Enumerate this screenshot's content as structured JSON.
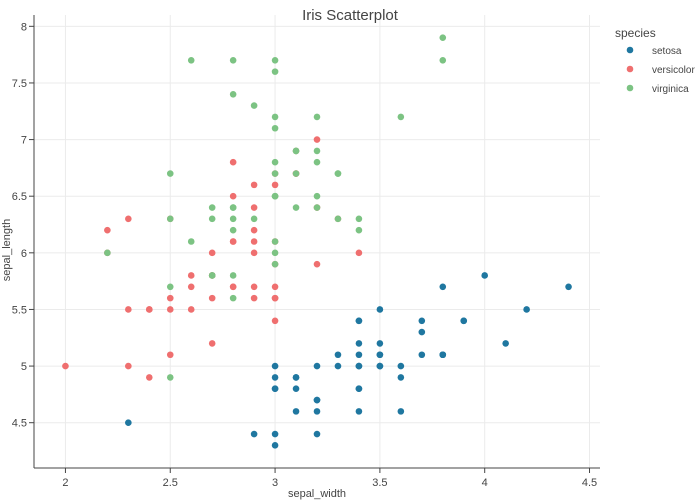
{
  "chart_data": {
    "type": "scatter",
    "title": "Iris Scatterplot",
    "xlabel": "sepal_width",
    "ylabel": "sepal_length",
    "xlim": [
      1.85,
      4.55
    ],
    "ylim": [
      4.1,
      8.1
    ],
    "xticks": [
      "2",
      "2.5",
      "3",
      "3.5",
      "4",
      "4.5"
    ],
    "yticks": [
      "4.5",
      "5",
      "5.5",
      "6",
      "6.5",
      "7",
      "7.5",
      "8"
    ],
    "grid": true,
    "legend": {
      "title": "species",
      "position": "right"
    },
    "series": [
      {
        "name": "setosa",
        "color": "#1f77a0",
        "points": [
          [
            3.5,
            5.1
          ],
          [
            3.0,
            4.9
          ],
          [
            3.2,
            4.7
          ],
          [
            3.1,
            4.6
          ],
          [
            3.6,
            5.0
          ],
          [
            3.9,
            5.4
          ],
          [
            3.4,
            4.6
          ],
          [
            3.4,
            5.0
          ],
          [
            2.9,
            4.4
          ],
          [
            3.1,
            4.9
          ],
          [
            3.7,
            5.4
          ],
          [
            3.4,
            4.8
          ],
          [
            3.0,
            4.8
          ],
          [
            3.0,
            4.3
          ],
          [
            4.0,
            5.8
          ],
          [
            4.4,
            5.7
          ],
          [
            3.9,
            5.4
          ],
          [
            3.5,
            5.1
          ],
          [
            3.8,
            5.7
          ],
          [
            3.8,
            5.1
          ],
          [
            3.4,
            5.4
          ],
          [
            3.7,
            5.1
          ],
          [
            3.6,
            4.6
          ],
          [
            3.3,
            5.1
          ],
          [
            3.4,
            4.8
          ],
          [
            3.0,
            5.0
          ],
          [
            3.4,
            5.0
          ],
          [
            3.5,
            5.2
          ],
          [
            3.4,
            5.2
          ],
          [
            3.2,
            4.7
          ],
          [
            3.1,
            4.8
          ],
          [
            3.4,
            5.4
          ],
          [
            4.1,
            5.2
          ],
          [
            4.2,
            5.5
          ],
          [
            3.1,
            4.9
          ],
          [
            3.2,
            5.0
          ],
          [
            3.5,
            5.5
          ],
          [
            3.6,
            4.9
          ],
          [
            3.0,
            4.4
          ],
          [
            3.4,
            5.1
          ],
          [
            3.5,
            5.0
          ],
          [
            2.3,
            4.5
          ],
          [
            3.2,
            4.4
          ],
          [
            3.5,
            5.0
          ],
          [
            3.8,
            5.1
          ],
          [
            3.0,
            4.8
          ],
          [
            3.8,
            5.1
          ],
          [
            3.2,
            4.6
          ],
          [
            3.7,
            5.3
          ],
          [
            3.3,
            5.0
          ]
        ]
      },
      {
        "name": "versicolor",
        "color": "#ef6f6f",
        "points": [
          [
            3.2,
            7.0
          ],
          [
            3.2,
            6.4
          ],
          [
            3.1,
            6.9
          ],
          [
            2.3,
            5.5
          ],
          [
            2.8,
            6.5
          ],
          [
            2.8,
            5.7
          ],
          [
            3.3,
            6.3
          ],
          [
            2.4,
            4.9
          ],
          [
            2.9,
            6.6
          ],
          [
            2.7,
            5.2
          ],
          [
            2.0,
            5.0
          ],
          [
            3.0,
            5.9
          ],
          [
            2.2,
            6.0
          ],
          [
            2.9,
            6.1
          ],
          [
            2.9,
            5.6
          ],
          [
            3.1,
            6.7
          ],
          [
            3.0,
            5.6
          ],
          [
            2.7,
            5.8
          ],
          [
            2.2,
            6.2
          ],
          [
            2.5,
            5.6
          ],
          [
            3.2,
            5.9
          ],
          [
            2.8,
            6.1
          ],
          [
            2.5,
            6.3
          ],
          [
            2.8,
            6.1
          ],
          [
            2.9,
            6.4
          ],
          [
            3.0,
            6.6
          ],
          [
            2.8,
            6.8
          ],
          [
            3.0,
            6.7
          ],
          [
            2.9,
            6.0
          ],
          [
            2.6,
            5.7
          ],
          [
            2.4,
            5.5
          ],
          [
            2.4,
            5.5
          ],
          [
            2.7,
            5.8
          ],
          [
            2.7,
            6.0
          ],
          [
            3.0,
            5.4
          ],
          [
            3.4,
            6.0
          ],
          [
            3.1,
            6.7
          ],
          [
            2.3,
            6.3
          ],
          [
            3.0,
            5.6
          ],
          [
            2.5,
            5.5
          ],
          [
            2.6,
            5.5
          ],
          [
            3.0,
            6.1
          ],
          [
            2.6,
            5.8
          ],
          [
            2.3,
            5.0
          ],
          [
            2.7,
            5.6
          ],
          [
            3.0,
            5.7
          ],
          [
            2.9,
            5.7
          ],
          [
            2.9,
            6.2
          ],
          [
            2.5,
            5.1
          ],
          [
            2.8,
            5.7
          ]
        ]
      },
      {
        "name": "virginica",
        "color": "#7cc383",
        "points": [
          [
            3.3,
            6.3
          ],
          [
            2.7,
            5.8
          ],
          [
            3.0,
            7.1
          ],
          [
            2.9,
            6.3
          ],
          [
            3.0,
            6.5
          ],
          [
            3.0,
            7.6
          ],
          [
            2.5,
            4.9
          ],
          [
            2.9,
            7.3
          ],
          [
            2.5,
            6.7
          ],
          [
            3.6,
            7.2
          ],
          [
            3.2,
            6.5
          ],
          [
            2.7,
            6.4
          ],
          [
            3.0,
            6.8
          ],
          [
            2.5,
            5.7
          ],
          [
            2.8,
            5.8
          ],
          [
            3.2,
            6.4
          ],
          [
            3.0,
            6.5
          ],
          [
            3.8,
            7.7
          ],
          [
            2.6,
            7.7
          ],
          [
            2.2,
            6.0
          ],
          [
            3.2,
            6.9
          ],
          [
            2.8,
            5.6
          ],
          [
            2.8,
            7.7
          ],
          [
            2.7,
            6.3
          ],
          [
            3.3,
            6.7
          ],
          [
            3.2,
            7.2
          ],
          [
            2.8,
            6.2
          ],
          [
            3.0,
            6.1
          ],
          [
            2.8,
            6.4
          ],
          [
            3.0,
            7.2
          ],
          [
            2.8,
            7.4
          ],
          [
            3.8,
            7.9
          ],
          [
            2.8,
            6.4
          ],
          [
            2.8,
            6.3
          ],
          [
            2.6,
            6.1
          ],
          [
            3.0,
            7.7
          ],
          [
            3.4,
            6.3
          ],
          [
            3.1,
            6.4
          ],
          [
            3.0,
            6.0
          ],
          [
            3.1,
            6.9
          ],
          [
            3.1,
            6.7
          ],
          [
            3.1,
            6.9
          ],
          [
            2.7,
            5.8
          ],
          [
            3.2,
            6.8
          ],
          [
            3.3,
            6.7
          ],
          [
            3.0,
            6.7
          ],
          [
            2.5,
            6.3
          ],
          [
            3.0,
            6.5
          ],
          [
            3.4,
            6.2
          ],
          [
            3.0,
            5.9
          ]
        ]
      }
    ]
  }
}
